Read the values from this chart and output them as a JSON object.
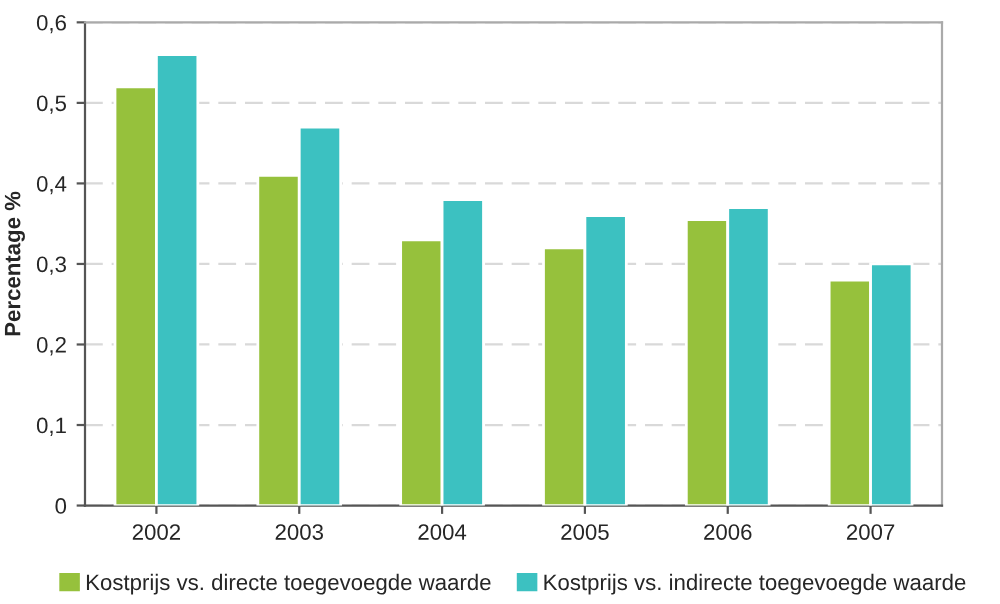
{
  "chart_data": {
    "type": "bar",
    "ylabel": "Percentage %",
    "categories": [
      "2002",
      "2003",
      "2004",
      "2005",
      "2006",
      "2007"
    ],
    "series": [
      {
        "name": "Kostprijs vs. directe toegevoegde waarde",
        "color": "#96c13c",
        "values": [
          0.52,
          0.41,
          0.33,
          0.32,
          0.355,
          0.28
        ]
      },
      {
        "name": "Kostprijs vs. indirecte toegevoegde waarde",
        "color": "#3cc1c1",
        "values": [
          0.56,
          0.47,
          0.38,
          0.36,
          0.37,
          0.3
        ]
      }
    ],
    "ylim": [
      0,
      0.6
    ],
    "yticks": [
      {
        "value": 0,
        "label": "0"
      },
      {
        "value": 0.1,
        "label": "0,1"
      },
      {
        "value": 0.2,
        "label": "0,2"
      },
      {
        "value": 0.3,
        "label": "0,3"
      },
      {
        "value": 0.4,
        "label": "0,4"
      },
      {
        "value": 0.5,
        "label": "0,5"
      },
      {
        "value": 0.6,
        "label": "0,6"
      }
    ],
    "grid": "y",
    "legend": "bottom"
  }
}
